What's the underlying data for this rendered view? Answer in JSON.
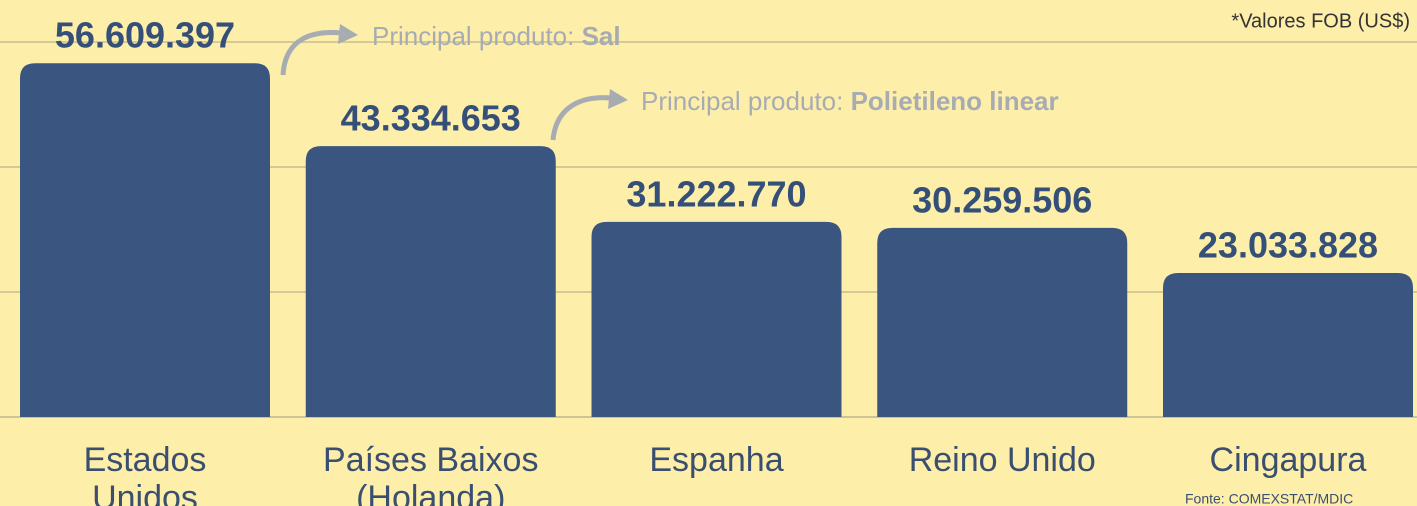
{
  "chart_data": {
    "type": "bar",
    "categories": [
      "Estados Unidos",
      "Países Baixos (Holanda)",
      "Espanha",
      "Reino Unido",
      "Cingapura"
    ],
    "values": [
      56609397,
      43334653,
      31222770,
      30259506,
      23033828
    ],
    "value_labels": [
      "56.609.397",
      "43.334.653",
      "31.222.770",
      "30.259.506",
      "23.033.828"
    ],
    "color": "#3a5680",
    "ylim": [
      0,
      60000000
    ],
    "yticks": [
      0,
      20000000,
      40000000,
      60000000
    ],
    "grid": true,
    "annotations": [
      {
        "prefix": "Principal produto:",
        "highlight": "Sal"
      },
      {
        "prefix": "Principal produto:",
        "highlight": "Polietileno linear"
      }
    ],
    "note": "*Valores FOB (US$)",
    "source": "Fonte: COMEXSTAT/MDIC"
  }
}
